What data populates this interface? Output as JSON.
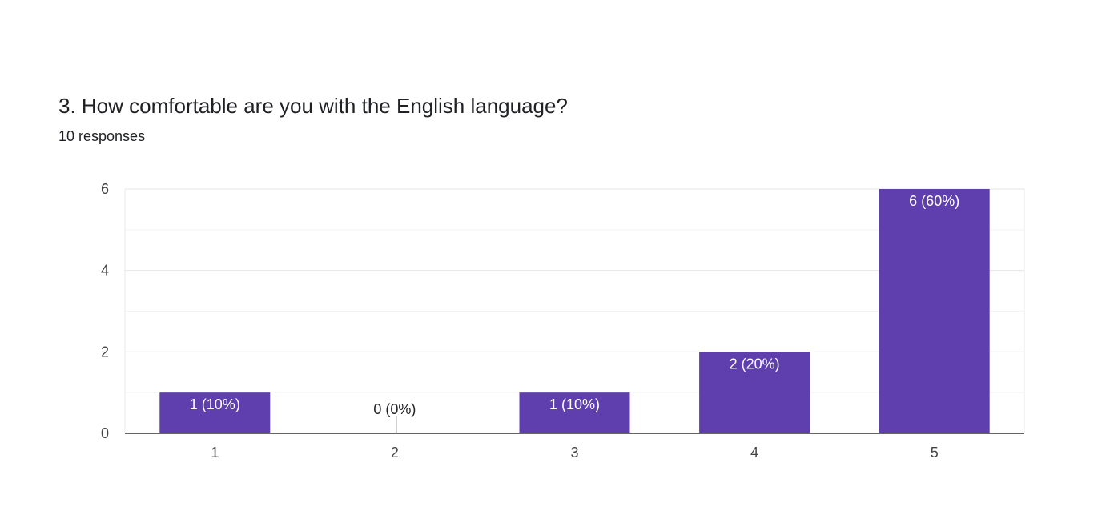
{
  "question": {
    "title": "3. How comfortable are you with the English language?",
    "responses": "10 responses"
  },
  "chart_data": {
    "type": "bar",
    "categories": [
      "1",
      "2",
      "3",
      "4",
      "5"
    ],
    "values": [
      1,
      0,
      1,
      2,
      6
    ],
    "data_labels": [
      "1 (10%)",
      "0 (0%)",
      "1 (10%)",
      "2 (20%)",
      "6 (60%)"
    ],
    "y_ticks": [
      0,
      2,
      4,
      6
    ],
    "ylim": [
      0,
      6
    ],
    "grid": true,
    "bar_color": "#5e3fad",
    "title": "",
    "xlabel": "",
    "ylabel": ""
  }
}
